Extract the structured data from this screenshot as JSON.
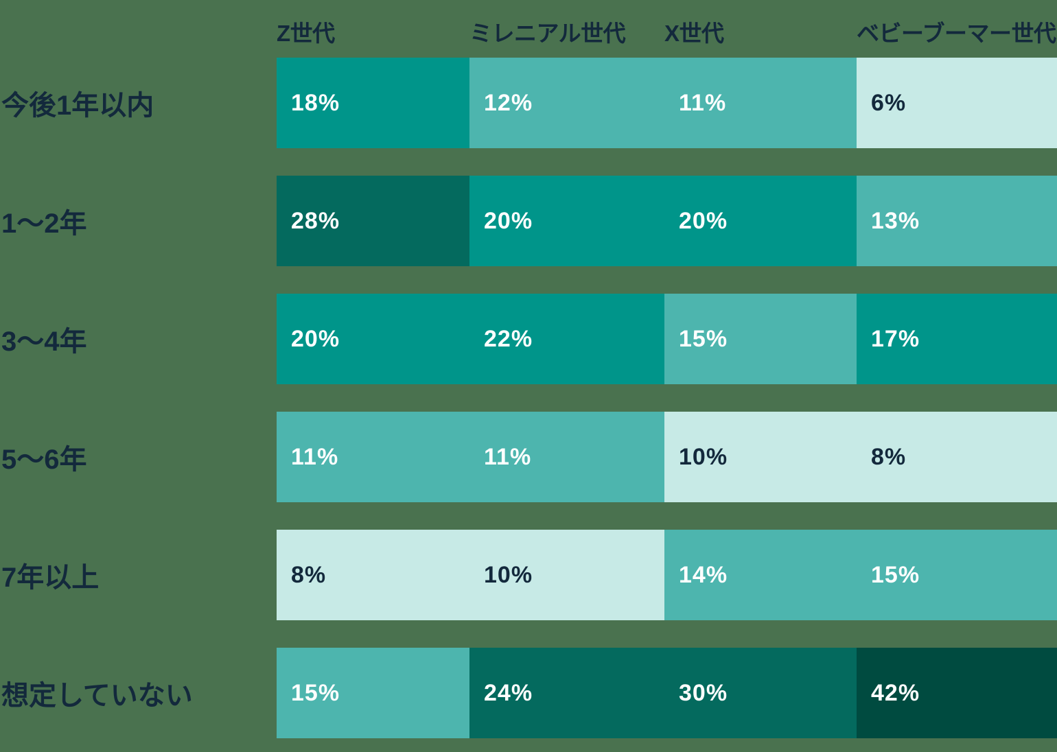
{
  "palette": {
    "background": "#4a724f",
    "text_dark": "#13293c",
    "text_light": "#ffffff",
    "teal": "#00958a",
    "light_teal": "#4db5ae",
    "mint": "#c7eae6",
    "dark_green": "#046a5e",
    "darkest_green": "#004b40"
  },
  "chart_data": {
    "type": "heatmap",
    "unit": "%",
    "title": "",
    "columns": [
      "Z世代",
      "ミレニアル世代",
      "X世代",
      "ベビーブーマー世代"
    ],
    "rows": [
      "今後1年以内",
      "1〜2年",
      "3〜4年",
      "5〜6年",
      "7年以上",
      "想定していない"
    ],
    "values": [
      [
        18,
        12,
        11,
        6
      ],
      [
        28,
        20,
        20,
        13
      ],
      [
        20,
        22,
        15,
        17
      ],
      [
        11,
        11,
        10,
        8
      ],
      [
        8,
        10,
        14,
        15
      ],
      [
        15,
        24,
        30,
        42
      ]
    ],
    "cell_labels": [
      [
        "18%",
        "12%",
        "11%",
        "6%"
      ],
      [
        "28%",
        "20%",
        "20%",
        "13%"
      ],
      [
        "20%",
        "22%",
        "15%",
        "17%"
      ],
      [
        "11%",
        "11%",
        "10%",
        "8%"
      ],
      [
        "8%",
        "10%",
        "14%",
        "15%"
      ],
      [
        "15%",
        "24%",
        "30%",
        "42%"
      ]
    ],
    "cell_colors": [
      [
        "teal",
        "light_teal",
        "light_teal",
        "mint"
      ],
      [
        "dark_green",
        "teal",
        "teal",
        "light_teal"
      ],
      [
        "teal",
        "teal",
        "light_teal",
        "teal"
      ],
      [
        "light_teal",
        "light_teal",
        "mint",
        "mint"
      ],
      [
        "mint",
        "mint",
        "light_teal",
        "light_teal"
      ],
      [
        "light_teal",
        "dark_green",
        "dark_green",
        "darkest_green"
      ]
    ]
  }
}
